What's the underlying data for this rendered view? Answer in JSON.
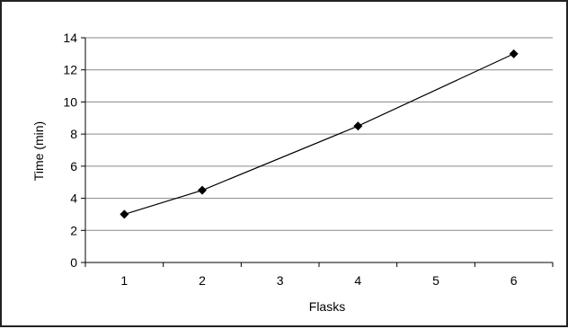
{
  "chart_data": {
    "type": "line",
    "title": "",
    "xlabel": "Flasks",
    "ylabel": "Time (min)",
    "categories": [
      "1",
      "2",
      "3",
      "4",
      "5",
      "6"
    ],
    "yticks": [
      "0",
      "2",
      "4",
      "6",
      "8",
      "10",
      "12",
      "14"
    ],
    "ylim": [
      0,
      14
    ],
    "grid": true,
    "series": [
      {
        "points": [
          {
            "x": "1",
            "y": 3.0
          },
          {
            "x": "2",
            "y": 4.5
          },
          {
            "x": "4",
            "y": 8.5
          },
          {
            "x": "6",
            "y": 13.0
          }
        ],
        "marker": "diamond",
        "color": "#000000"
      }
    ]
  }
}
